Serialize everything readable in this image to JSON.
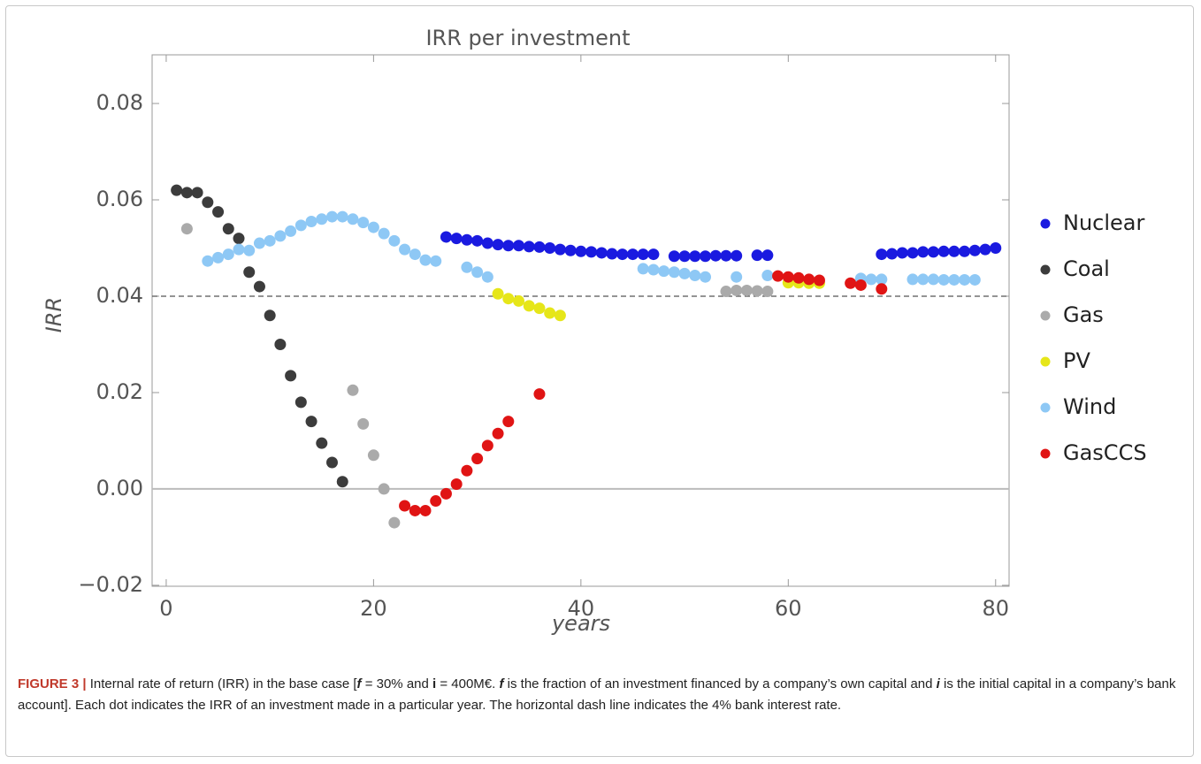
{
  "chart_data": {
    "type": "scatter",
    "title": "IRR per investment",
    "x_label": "years",
    "y_label": "IRR",
    "xlim": [
      -1.36,
      81.3
    ],
    "ylim": [
      -0.0202,
      0.0901
    ],
    "xticks": [
      0,
      20,
      40,
      60,
      80
    ],
    "yticks": [
      {
        "value": -0.02,
        "label": "−0.02"
      },
      {
        "value": 0,
        "label": "0.00"
      },
      {
        "value": 0.02,
        "label": "0.02"
      },
      {
        "value": 0.04,
        "label": "0.04"
      },
      {
        "value": 0.06,
        "label": "0.06"
      },
      {
        "value": 0.08,
        "label": "0.08"
      }
    ],
    "reference_line": 0.04,
    "series": [
      {
        "name": "Nuclear",
        "color": "#1a1ae0",
        "x": [
          27,
          28,
          29,
          30,
          31,
          32,
          33,
          34,
          35,
          36,
          37,
          38,
          39,
          40,
          41,
          42,
          43,
          44,
          45,
          46,
          47,
          49,
          50,
          51,
          52,
          53,
          54,
          55,
          57,
          58,
          69,
          70,
          71,
          72,
          73,
          74,
          75,
          76,
          77,
          78,
          79,
          80
        ],
        "values": [
          0.0523,
          0.052,
          0.0517,
          0.0515,
          0.051,
          0.0507,
          0.0505,
          0.0505,
          0.0503,
          0.0502,
          0.05,
          0.0497,
          0.0495,
          0.0493,
          0.0492,
          0.049,
          0.0488,
          0.0487,
          0.0487,
          0.0487,
          0.0487,
          0.0483,
          0.0483,
          0.0483,
          0.0483,
          0.0484,
          0.0484,
          0.0484,
          0.0485,
          0.0485,
          0.0487,
          0.0488,
          0.049,
          0.049,
          0.0492,
          0.0492,
          0.0493,
          0.0493,
          0.0493,
          0.0495,
          0.0497,
          0.05
        ]
      },
      {
        "name": "Coal",
        "color": "#3c3c3c",
        "x": [
          1,
          2,
          3,
          4,
          5,
          6,
          7,
          8,
          9,
          10,
          11,
          12,
          13,
          14,
          15,
          16,
          17
        ],
        "values": [
          0.062,
          0.0615,
          0.0615,
          0.0595,
          0.0575,
          0.054,
          0.052,
          0.045,
          0.042,
          0.036,
          0.03,
          0.0235,
          0.018,
          0.014,
          0.0095,
          0.0055,
          0.0015
        ]
      },
      {
        "name": "Gas",
        "color": "#aaaaaa",
        "x": [
          2,
          18,
          19,
          20,
          21,
          22,
          54,
          55,
          56,
          57,
          58
        ],
        "values": [
          0.054,
          0.0205,
          0.0135,
          0.007,
          0.0,
          -0.007,
          0.041,
          0.0412,
          0.0412,
          0.0411,
          0.041
        ]
      },
      {
        "name": "PV",
        "color": "#e6e619",
        "x": [
          32,
          33,
          34,
          35,
          36,
          37,
          38,
          60,
          61,
          62,
          63
        ],
        "values": [
          0.0405,
          0.0395,
          0.039,
          0.038,
          0.0375,
          0.0365,
          0.036,
          0.0428,
          0.0428,
          0.0427,
          0.0427
        ]
      },
      {
        "name": "Wind",
        "color": "#8ec8f5",
        "x": [
          4,
          5,
          6,
          7,
          8,
          9,
          10,
          11,
          12,
          13,
          14,
          15,
          16,
          17,
          18,
          19,
          20,
          21,
          22,
          23,
          24,
          25,
          26,
          29,
          30,
          31,
          46,
          47,
          48,
          49,
          50,
          51,
          52,
          55,
          58,
          67,
          68,
          69,
          72,
          73,
          74,
          75,
          76,
          77,
          78
        ],
        "values": [
          0.0473,
          0.048,
          0.0487,
          0.0497,
          0.0495,
          0.051,
          0.0515,
          0.0525,
          0.0535,
          0.0547,
          0.0555,
          0.056,
          0.0565,
          0.0565,
          0.056,
          0.0553,
          0.0543,
          0.053,
          0.0515,
          0.0497,
          0.0487,
          0.0475,
          0.0473,
          0.046,
          0.045,
          0.044,
          0.0457,
          0.0455,
          0.0452,
          0.045,
          0.0447,
          0.0443,
          0.044,
          0.044,
          0.0443,
          0.0437,
          0.0435,
          0.0435,
          0.0435,
          0.0435,
          0.0435,
          0.0434,
          0.0434,
          0.0434,
          0.0434
        ]
      },
      {
        "name": "GasCCS",
        "color": "#e01414",
        "x": [
          23,
          24,
          25,
          26,
          27,
          28,
          29,
          30,
          31,
          32,
          33,
          36,
          59,
          60,
          61,
          62,
          63,
          66,
          67,
          69
        ],
        "values": [
          -0.0035,
          -0.0045,
          -0.0045,
          -0.0025,
          -0.001,
          0.001,
          0.0038,
          0.0063,
          0.009,
          0.0115,
          0.014,
          0.0197,
          0.0442,
          0.044,
          0.0438,
          0.0435,
          0.0433,
          0.0427,
          0.0423,
          0.0415
        ]
      }
    ]
  },
  "caption": [
    {
      "text": "FIGURE 3 |",
      "style": "lead"
    },
    {
      "text": " Internal rate of return (IRR) in the base case [",
      "style": "normal"
    },
    {
      "text": "f",
      "style": "bold-italic"
    },
    {
      "text": " = 30% and ",
      "style": "normal"
    },
    {
      "text": "i",
      "style": "bold"
    },
    {
      "text": " = 400M€. ",
      "style": "normal"
    },
    {
      "text": "f",
      "style": "bold-italic"
    },
    {
      "text": " is the fraction of an investment financed by a company’s own capital and ",
      "style": "normal"
    },
    {
      "text": "i",
      "style": "bold-italic"
    },
    {
      "text": " is the initial capital in a company’s bank account]. Each dot indicates the IRR of an investment made in a particular year. The horizontal dash line indicates the 4% bank interest rate.",
      "style": "normal"
    }
  ]
}
